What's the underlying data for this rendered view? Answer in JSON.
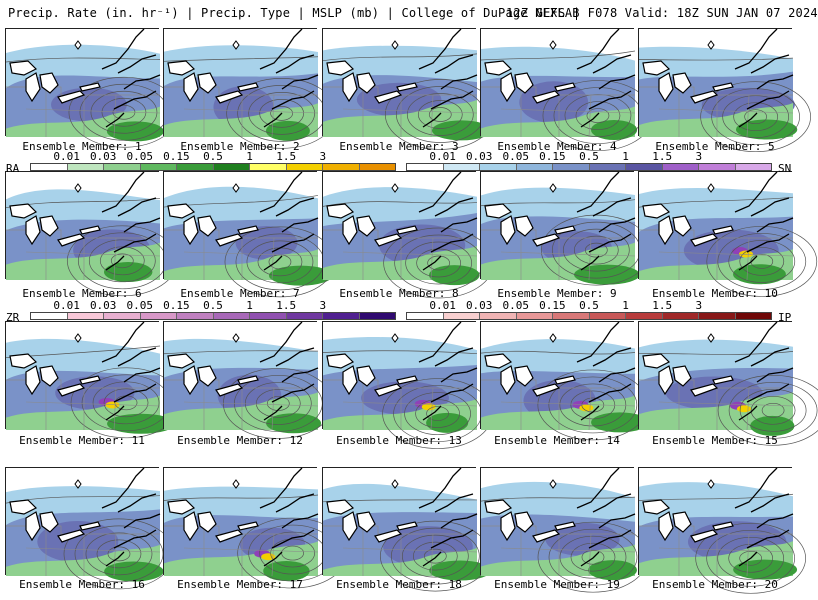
{
  "header": {
    "left": "Precip. Rate (in. hr⁻¹) | Precip. Type | MSLP (mb) | College of DuPage NEXLAB",
    "right": "12Z GEFS | F078 Valid: 18Z SUN JAN 07 2024"
  },
  "members": [
    "Ensemble Member: 1",
    "Ensemble Member: 2",
    "Ensemble Member: 3",
    "Ensemble Member: 4",
    "Ensemble Member: 5",
    "Ensemble Member: 6",
    "Ensemble Member: 7",
    "Ensemble Member: 8",
    "Ensemble Member: 9",
    "Ensemble Member: 10",
    "Ensemble Member: 11",
    "Ensemble Member: 12",
    "Ensemble Member: 13",
    "Ensemble Member: 14",
    "Ensemble Member: 15",
    "Ensemble Member: 16",
    "Ensemble Member: 17",
    "Ensemble Member: 18",
    "Ensemble Member: 19",
    "Ensemble Member: 20"
  ],
  "legends": {
    "rain": {
      "tag": "RA",
      "ticks": [
        "0.01",
        "0.03",
        "0.05",
        "0.15",
        "0.5",
        "1",
        "1.5",
        "3"
      ],
      "colors": [
        "#ffffff",
        "#bfe6bf",
        "#8fd08f",
        "#5fb85f",
        "#3a9c3a",
        "#1f7f1f",
        "#ffff66",
        "#f4d000",
        "#f0b000",
        "#e89000"
      ]
    },
    "snow": {
      "tag": "SN",
      "ticks": [
        "0.01",
        "0.03",
        "0.05",
        "0.15",
        "0.5",
        "1",
        "1.5",
        "3"
      ],
      "colors": [
        "#ffffff",
        "#cfe8f4",
        "#a8d2ea",
        "#8fb6dc",
        "#7a92c8",
        "#6a72b4",
        "#5a55a2",
        "#9f5fc8",
        "#c07ed8",
        "#d8a8e8"
      ]
    },
    "freezing_rain": {
      "tag": "ZR",
      "ticks": [
        "0.01",
        "0.03",
        "0.05",
        "0.15",
        "0.5",
        "1",
        "1.5",
        "3"
      ],
      "colors": [
        "#ffffff",
        "#f8c8d8",
        "#e8b0d0",
        "#d898c8",
        "#c080c0",
        "#a868b8",
        "#9050b0",
        "#7038a0",
        "#502090",
        "#300a70"
      ]
    },
    "ice_pellets": {
      "tag": "IP",
      "ticks": [
        "0.01",
        "0.03",
        "0.05",
        "0.15",
        "0.5",
        "1",
        "1.5",
        "3"
      ],
      "colors": [
        "#ffffff",
        "#f8d0d0",
        "#f0b4b4",
        "#e89898",
        "#d87878",
        "#c85858",
        "#b83c3c",
        "#a02828",
        "#881818",
        "#700808"
      ]
    }
  },
  "colors": {
    "snow_light": "#a8d2ea",
    "snow_mod": "#7a92c8",
    "snow_heavy": "#6a72b4",
    "rain_light": "#8fd08f",
    "rain_mod": "#3a9c3a",
    "yellow": "#f4d000",
    "purple": "#9040b8",
    "isobar": "#555555",
    "coast": "#000000",
    "border": "#8a8a8a"
  }
}
